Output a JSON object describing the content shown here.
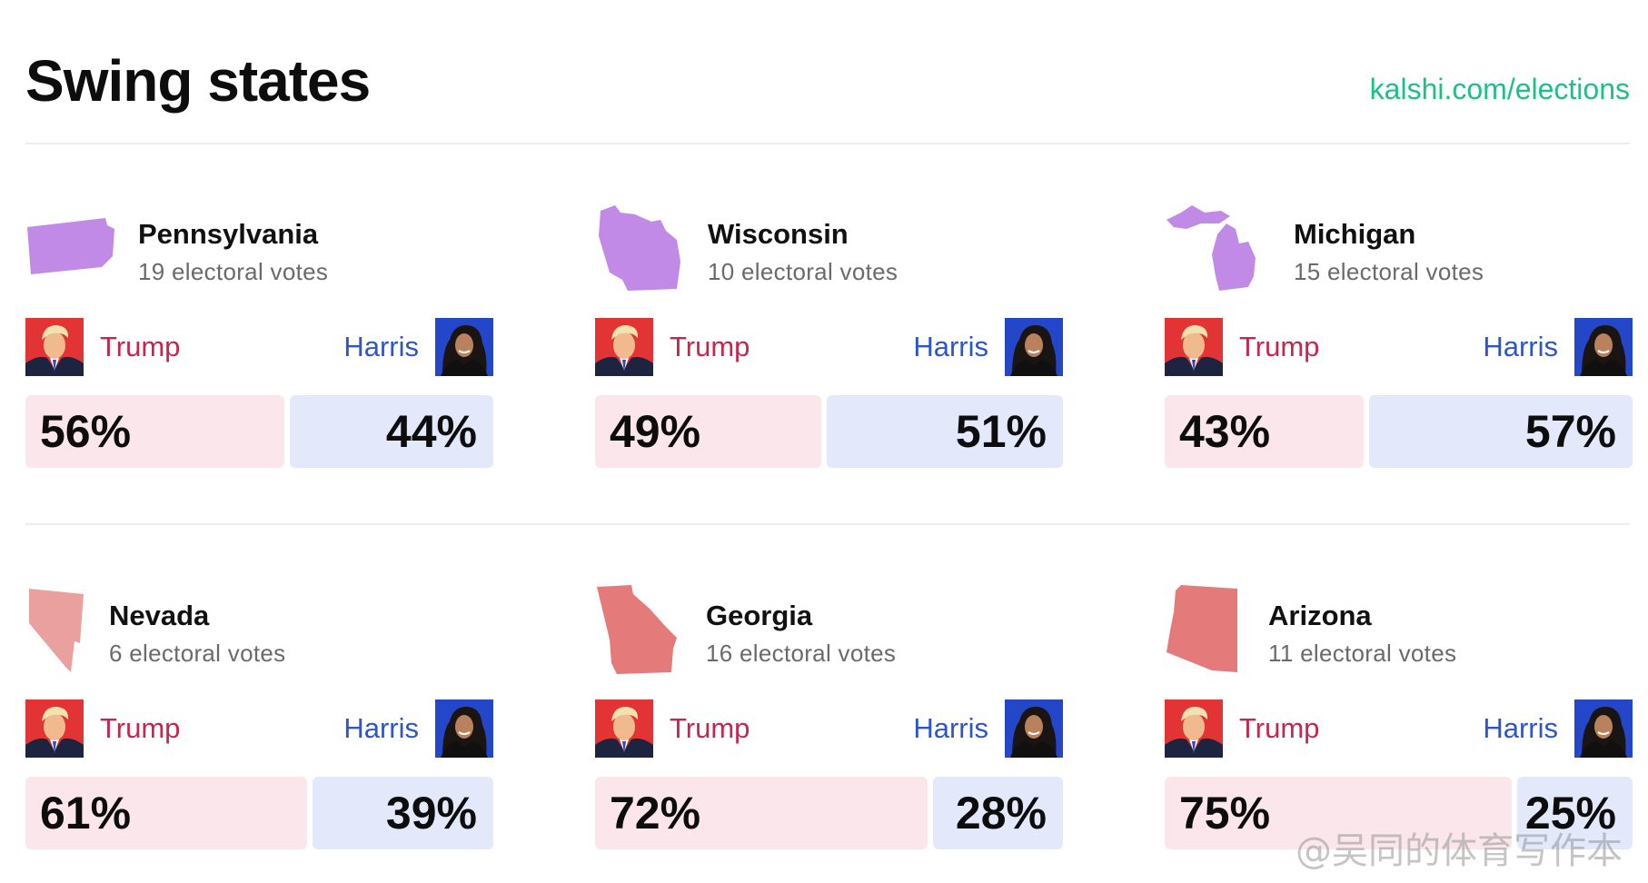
{
  "header": {
    "title": "Swing states",
    "link": "kalshi.com/elections"
  },
  "candidates": {
    "left": "Trump",
    "right": "Harris"
  },
  "colors": {
    "trump_text": "#c4264c",
    "harris_text": "#2d55c8",
    "trump_bar": "#fbe6ec",
    "harris_bar": "#e3e9fb",
    "link": "#1fbf86",
    "state_purple": "#c08ae6",
    "state_light_red": "#eba0a0",
    "state_red": "#e47a7a"
  },
  "chart_data": {
    "type": "bar",
    "categories": [
      "Pennsylvania",
      "Wisconsin",
      "Michigan",
      "Nevada",
      "Georgia",
      "Arizona"
    ],
    "series": [
      {
        "name": "Trump",
        "values": [
          56,
          49,
          43,
          61,
          72,
          75
        ]
      },
      {
        "name": "Harris",
        "values": [
          44,
          51,
          57,
          39,
          28,
          25
        ]
      }
    ]
  },
  "states": [
    {
      "name": "Pennsylvania",
      "votes": "19 electoral votes",
      "trump_pct": "56%",
      "harris_pct": "44%",
      "trump": 56,
      "harris": 44,
      "shape": "pennsylvania-shape",
      "color": "#c08ae6"
    },
    {
      "name": "Wisconsin",
      "votes": "10 electoral votes",
      "trump_pct": "49%",
      "harris_pct": "51%",
      "trump": 49,
      "harris": 51,
      "shape": "wisconsin-shape",
      "color": "#c08ae6"
    },
    {
      "name": "Michigan",
      "votes": "15 electoral votes",
      "trump_pct": "43%",
      "harris_pct": "57%",
      "trump": 43,
      "harris": 57,
      "shape": "michigan-shape",
      "color": "#c08ae6"
    },
    {
      "name": "Nevada",
      "votes": "6 electoral votes",
      "trump_pct": "61%",
      "harris_pct": "39%",
      "trump": 61,
      "harris": 39,
      "shape": "nevada-shape",
      "color": "#eba0a0"
    },
    {
      "name": "Georgia",
      "votes": "16 electoral votes",
      "trump_pct": "72%",
      "harris_pct": "28%",
      "trump": 72,
      "harris": 28,
      "shape": "georgia-shape",
      "color": "#e47a7a"
    },
    {
      "name": "Arizona",
      "votes": "11 electoral votes",
      "trump_pct": "75%",
      "harris_pct": "25%",
      "trump": 75,
      "harris": 25,
      "shape": "arizona-shape",
      "color": "#e47a7a"
    }
  ],
  "watermark": "@吴同的体育写作本"
}
